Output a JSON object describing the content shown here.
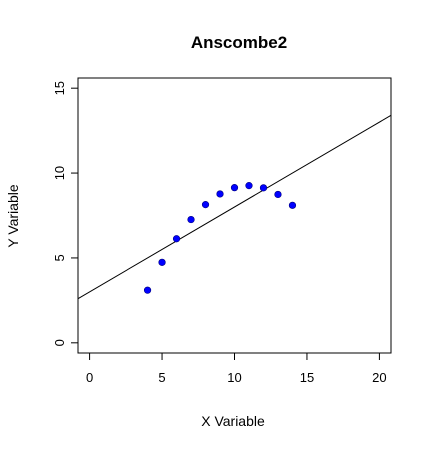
{
  "chart_data": {
    "type": "scatter",
    "title": "Anscombe2",
    "xlabel": "X Variable",
    "ylabel": "Y Variable",
    "xlim": [
      -0.8,
      20.8
    ],
    "ylim": [
      -0.6,
      15.6
    ],
    "x_ticks": [
      0,
      5,
      10,
      15,
      20
    ],
    "y_ticks": [
      0,
      5,
      10,
      15
    ],
    "x_tick_labels": [
      "0",
      "5",
      "10",
      "15",
      "20"
    ],
    "y_tick_labels": [
      "0",
      "5",
      "10",
      "15"
    ],
    "grid": false,
    "point_color": "#0000ff",
    "points": [
      {
        "x": 4,
        "y": 3.1
      },
      {
        "x": 5,
        "y": 4.74
      },
      {
        "x": 6,
        "y": 6.13
      },
      {
        "x": 7,
        "y": 7.26
      },
      {
        "x": 8,
        "y": 8.14
      },
      {
        "x": 9,
        "y": 8.77
      },
      {
        "x": 10,
        "y": 9.14
      },
      {
        "x": 11,
        "y": 9.26
      },
      {
        "x": 12,
        "y": 9.13
      },
      {
        "x": 13,
        "y": 8.74
      },
      {
        "x": 14,
        "y": 8.1
      }
    ],
    "regression_line": {
      "intercept": 3.0,
      "slope": 0.5,
      "color": "#000000"
    }
  }
}
